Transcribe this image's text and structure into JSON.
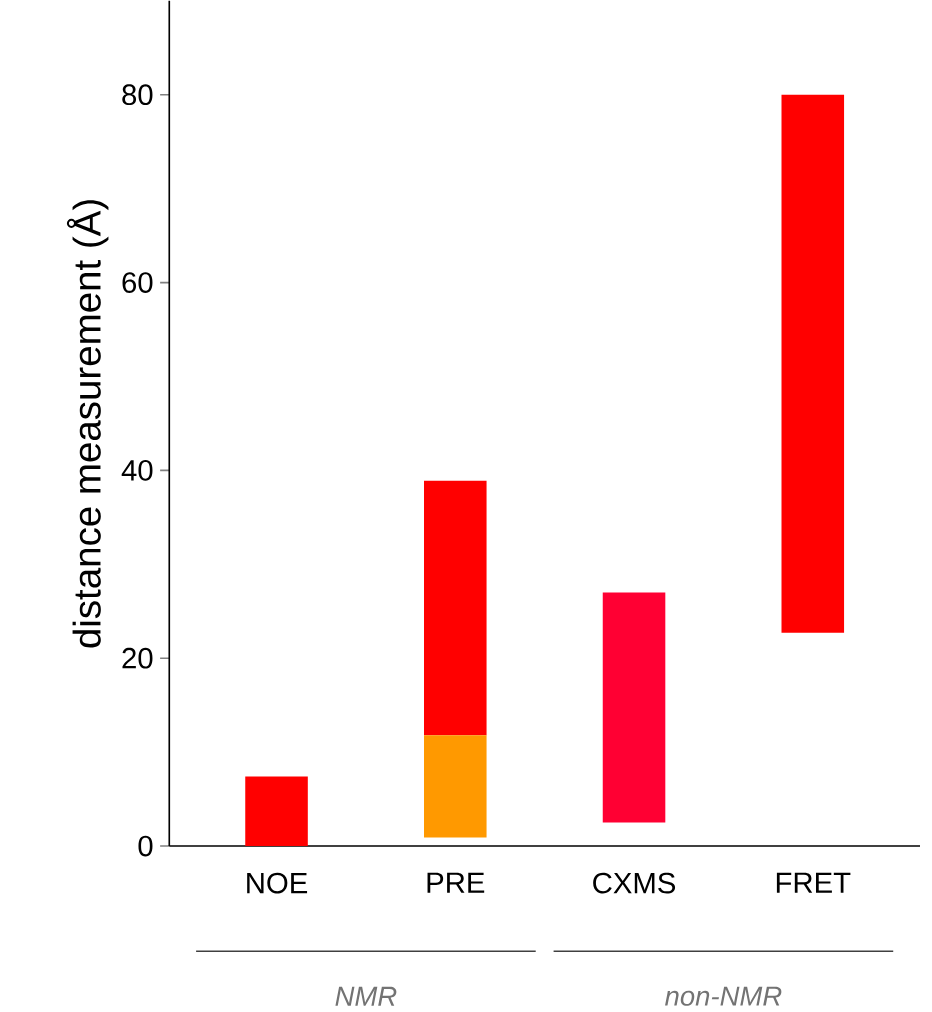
{
  "chart_data": {
    "type": "bar",
    "ylabel": "distance measurement (Å)",
    "categories": [
      "NOE",
      "PRE",
      "CXMS",
      "FRET"
    ],
    "series": [
      {
        "values": [
          7.4,
          27.1,
          24.5,
          57.3
        ],
        "base": [
          0,
          11.8,
          2.5,
          22.7
        ],
        "colors": [
          "#ff0000",
          "#ff0000",
          "#ff0033",
          "#ff0000"
        ]
      },
      {
        "values": [
          null,
          10.9,
          null,
          null
        ],
        "base": [
          null,
          0.9,
          null,
          null
        ],
        "color": "#ff9900"
      }
    ],
    "ylim": [
      0,
      90
    ],
    "yticks": [
      0,
      20,
      40,
      60,
      80
    ],
    "annotations": [
      "NMR",
      "non-NMR"
    ]
  }
}
